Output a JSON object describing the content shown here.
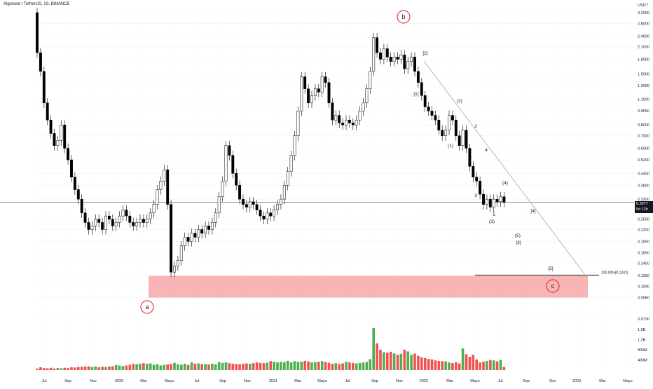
{
  "header": {
    "title": "Algorand / TetherUS, 1S, BINANCE"
  },
  "price_axis": {
    "unit": "USDT",
    "labels": [
      "3.2000",
      "2.8000",
      "2.4000",
      "2.1000",
      "1.8000",
      "1.5000",
      "1.3000",
      "1.1000",
      "0.9550",
      "0.8000",
      "0.7000",
      "0.6000",
      "0.5200",
      "0.4400",
      "0.3800",
      "0.3200",
      "0.3077",
      "0.2500",
      "0.2200",
      "0.1900",
      "0.1650",
      "0.1450",
      "0.1250",
      "0.1090",
      "0.0950",
      "0.0730"
    ],
    "current_price": "0.3077",
    "current_countdown": "5d 12h"
  },
  "volume_axis": {
    "labels": [
      "1.6B",
      "1.2B",
      "800M",
      "400M"
    ]
  },
  "time_axis": {
    "labels": [
      "Jul",
      "Sep",
      "Nov",
      "2020",
      "Mar",
      "Mayo",
      "Jul",
      "Sep",
      "Nov",
      "2021",
      "Mar",
      "Mayo",
      "Jul",
      "Sep",
      "Nov",
      "2022",
      "Mar",
      "Mayo",
      "Jul",
      "Sep",
      "Nov",
      "2023",
      "Mar",
      "Mayo"
    ]
  },
  "annotations": {
    "a": "a",
    "b": "b",
    "c": "c",
    "fib_label": "100.00%(0.1241)",
    "wave_labels": [
      "[2]",
      "[1]",
      "(2)",
      "(1)",
      "2",
      "1",
      "4",
      "3",
      "5",
      "(3)",
      "(4)",
      "(5)",
      "[3]",
      "[4]",
      "[5]"
    ]
  },
  "colors": {
    "up": "#ffffff",
    "down": "#000000",
    "vol_up": "#4caf50",
    "vol_down": "#ef5350",
    "zone": "#f7a8a8",
    "circle": "#e53935",
    "trendline": "#a8a8a8",
    "badge": "#131722"
  },
  "chart_data": {
    "type": "candlestick",
    "scale": "log",
    "title": "Algorand / TetherUS, 1S, BINANCE",
    "ylim": [
      0.073,
      3.2
    ],
    "candles": [
      [
        3.2,
        1.95
      ],
      [
        1.95,
        1.55
      ],
      [
        1.55,
        1.05
      ],
      [
        1.05,
        0.85
      ],
      [
        0.85,
        0.72
      ],
      [
        0.72,
        0.62
      ],
      [
        0.62,
        0.66
      ],
      [
        0.66,
        0.8
      ],
      [
        0.8,
        0.6
      ],
      [
        0.6,
        0.52
      ],
      [
        0.52,
        0.42
      ],
      [
        0.42,
        0.36
      ],
      [
        0.36,
        0.32
      ],
      [
        0.32,
        0.27
      ],
      [
        0.27,
        0.24
      ],
      [
        0.24,
        0.22
      ],
      [
        0.22,
        0.23
      ],
      [
        0.23,
        0.25
      ],
      [
        0.25,
        0.24
      ],
      [
        0.24,
        0.22
      ],
      [
        0.22,
        0.26
      ],
      [
        0.26,
        0.25
      ],
      [
        0.25,
        0.23
      ],
      [
        0.23,
        0.24
      ],
      [
        0.24,
        0.26
      ],
      [
        0.26,
        0.28
      ],
      [
        0.28,
        0.26
      ],
      [
        0.26,
        0.24
      ],
      [
        0.24,
        0.23
      ],
      [
        0.23,
        0.24
      ],
      [
        0.24,
        0.25
      ],
      [
        0.25,
        0.24
      ],
      [
        0.24,
        0.25
      ],
      [
        0.25,
        0.27
      ],
      [
        0.27,
        0.3
      ],
      [
        0.3,
        0.36
      ],
      [
        0.36,
        0.4
      ],
      [
        0.4,
        0.46
      ],
      [
        0.46,
        0.3
      ],
      [
        0.3,
        0.13
      ],
      [
        0.13,
        0.14
      ],
      [
        0.14,
        0.15
      ],
      [
        0.15,
        0.18
      ],
      [
        0.18,
        0.2
      ],
      [
        0.2,
        0.19
      ],
      [
        0.19,
        0.21
      ],
      [
        0.21,
        0.2
      ],
      [
        0.2,
        0.22
      ],
      [
        0.22,
        0.21
      ],
      [
        0.21,
        0.23
      ],
      [
        0.23,
        0.22
      ],
      [
        0.22,
        0.24
      ],
      [
        0.24,
        0.27
      ],
      [
        0.27,
        0.33
      ],
      [
        0.33,
        0.4
      ],
      [
        0.4,
        0.62
      ],
      [
        0.62,
        0.55
      ],
      [
        0.55,
        0.44
      ],
      [
        0.44,
        0.38
      ],
      [
        0.38,
        0.32
      ],
      [
        0.32,
        0.3
      ],
      [
        0.3,
        0.29
      ],
      [
        0.29,
        0.31
      ],
      [
        0.31,
        0.3
      ],
      [
        0.3,
        0.28
      ],
      [
        0.28,
        0.26
      ],
      [
        0.26,
        0.25
      ],
      [
        0.25,
        0.27
      ],
      [
        0.27,
        0.26
      ],
      [
        0.26,
        0.28
      ],
      [
        0.28,
        0.3
      ],
      [
        0.3,
        0.32
      ],
      [
        0.32,
        0.38
      ],
      [
        0.38,
        0.45
      ],
      [
        0.45,
        0.55
      ],
      [
        0.55,
        0.7
      ],
      [
        0.7,
        0.95
      ],
      [
        0.95,
        1.45
      ],
      [
        1.45,
        1.25
      ],
      [
        1.25,
        1.05
      ],
      [
        1.05,
        1.15
      ],
      [
        1.15,
        1.25
      ],
      [
        1.25,
        1.2
      ],
      [
        1.2,
        1.45
      ],
      [
        1.45,
        1.35
      ],
      [
        1.35,
        1.05
      ],
      [
        1.05,
        0.85
      ],
      [
        0.85,
        0.9
      ],
      [
        0.9,
        0.82
      ],
      [
        0.82,
        0.8
      ],
      [
        0.8,
        0.85
      ],
      [
        0.85,
        0.82
      ],
      [
        0.82,
        0.8
      ],
      [
        0.8,
        0.85
      ],
      [
        0.85,
        0.95
      ],
      [
        0.95,
        1.05
      ],
      [
        1.05,
        1.25
      ],
      [
        1.25,
        1.55
      ],
      [
        1.55,
        2.35
      ],
      [
        2.35,
        1.95
      ],
      [
        1.95,
        1.8
      ],
      [
        1.8,
        2.05
      ],
      [
        2.05,
        1.85
      ],
      [
        1.85,
        1.75
      ],
      [
        1.75,
        1.85
      ],
      [
        1.85,
        1.8
      ],
      [
        1.8,
        1.9
      ],
      [
        1.9,
        1.6
      ],
      [
        1.6,
        1.75
      ],
      [
        1.75,
        1.85
      ],
      [
        1.85,
        1.55
      ],
      [
        1.55,
        1.35
      ],
      [
        1.35,
        1.15
      ],
      [
        1.15,
        1.0
      ],
      [
        1.0,
        0.95
      ],
      [
        0.95,
        0.9
      ],
      [
        0.9,
        0.85
      ],
      [
        0.85,
        0.75
      ],
      [
        0.75,
        0.7
      ],
      [
        0.7,
        0.75
      ],
      [
        0.75,
        0.9
      ],
      [
        0.9,
        0.85
      ],
      [
        0.85,
        0.7
      ],
      [
        0.7,
        0.62
      ],
      [
        0.62,
        0.75
      ],
      [
        0.75,
        0.6
      ],
      [
        0.6,
        0.48
      ],
      [
        0.48,
        0.42
      ],
      [
        0.42,
        0.4
      ],
      [
        0.4,
        0.34
      ],
      [
        0.34,
        0.3
      ],
      [
        0.3,
        0.32
      ],
      [
        0.32,
        0.29
      ],
      [
        0.29,
        0.32
      ],
      [
        0.32,
        0.31
      ],
      [
        0.31,
        0.33
      ],
      [
        0.33,
        0.3077
      ]
    ],
    "volume": [
      60,
      110,
      80,
      70,
      90,
      60,
      80,
      70,
      90,
      80,
      110,
      100,
      120,
      130,
      140,
      150,
      120,
      140,
      110,
      130,
      120,
      140,
      150,
      200,
      180,
      160,
      180,
      210,
      240,
      230,
      250,
      270,
      250,
      260,
      210,
      230,
      180,
      200,
      220,
      240,
      280,
      230,
      210,
      250,
      200,
      300,
      250,
      260,
      230,
      240,
      220,
      250,
      230,
      320,
      280,
      300,
      270,
      250,
      240,
      230,
      250,
      260,
      250,
      270,
      300,
      280,
      270,
      290,
      350,
      330,
      300,
      320,
      310,
      360,
      300,
      350,
      320,
      330,
      360,
      340,
      300,
      310,
      330,
      350,
      320,
      290,
      250,
      270,
      240,
      260,
      330,
      300,
      280,
      260,
      280,
      300,
      320,
      430,
      1650,
      1050,
      800,
      700,
      680,
      720,
      650,
      600,
      640,
      800,
      730,
      600,
      650,
      560,
      500,
      470,
      440,
      420,
      380,
      360,
      350,
      340,
      300,
      270,
      310,
      260,
      850,
      620,
      520,
      600,
      420,
      300,
      330,
      360,
      400,
      380,
      340,
      400,
      120
    ],
    "fib_level": {
      "label": "100.00%(0.1241)",
      "price": 0.1241
    }
  }
}
